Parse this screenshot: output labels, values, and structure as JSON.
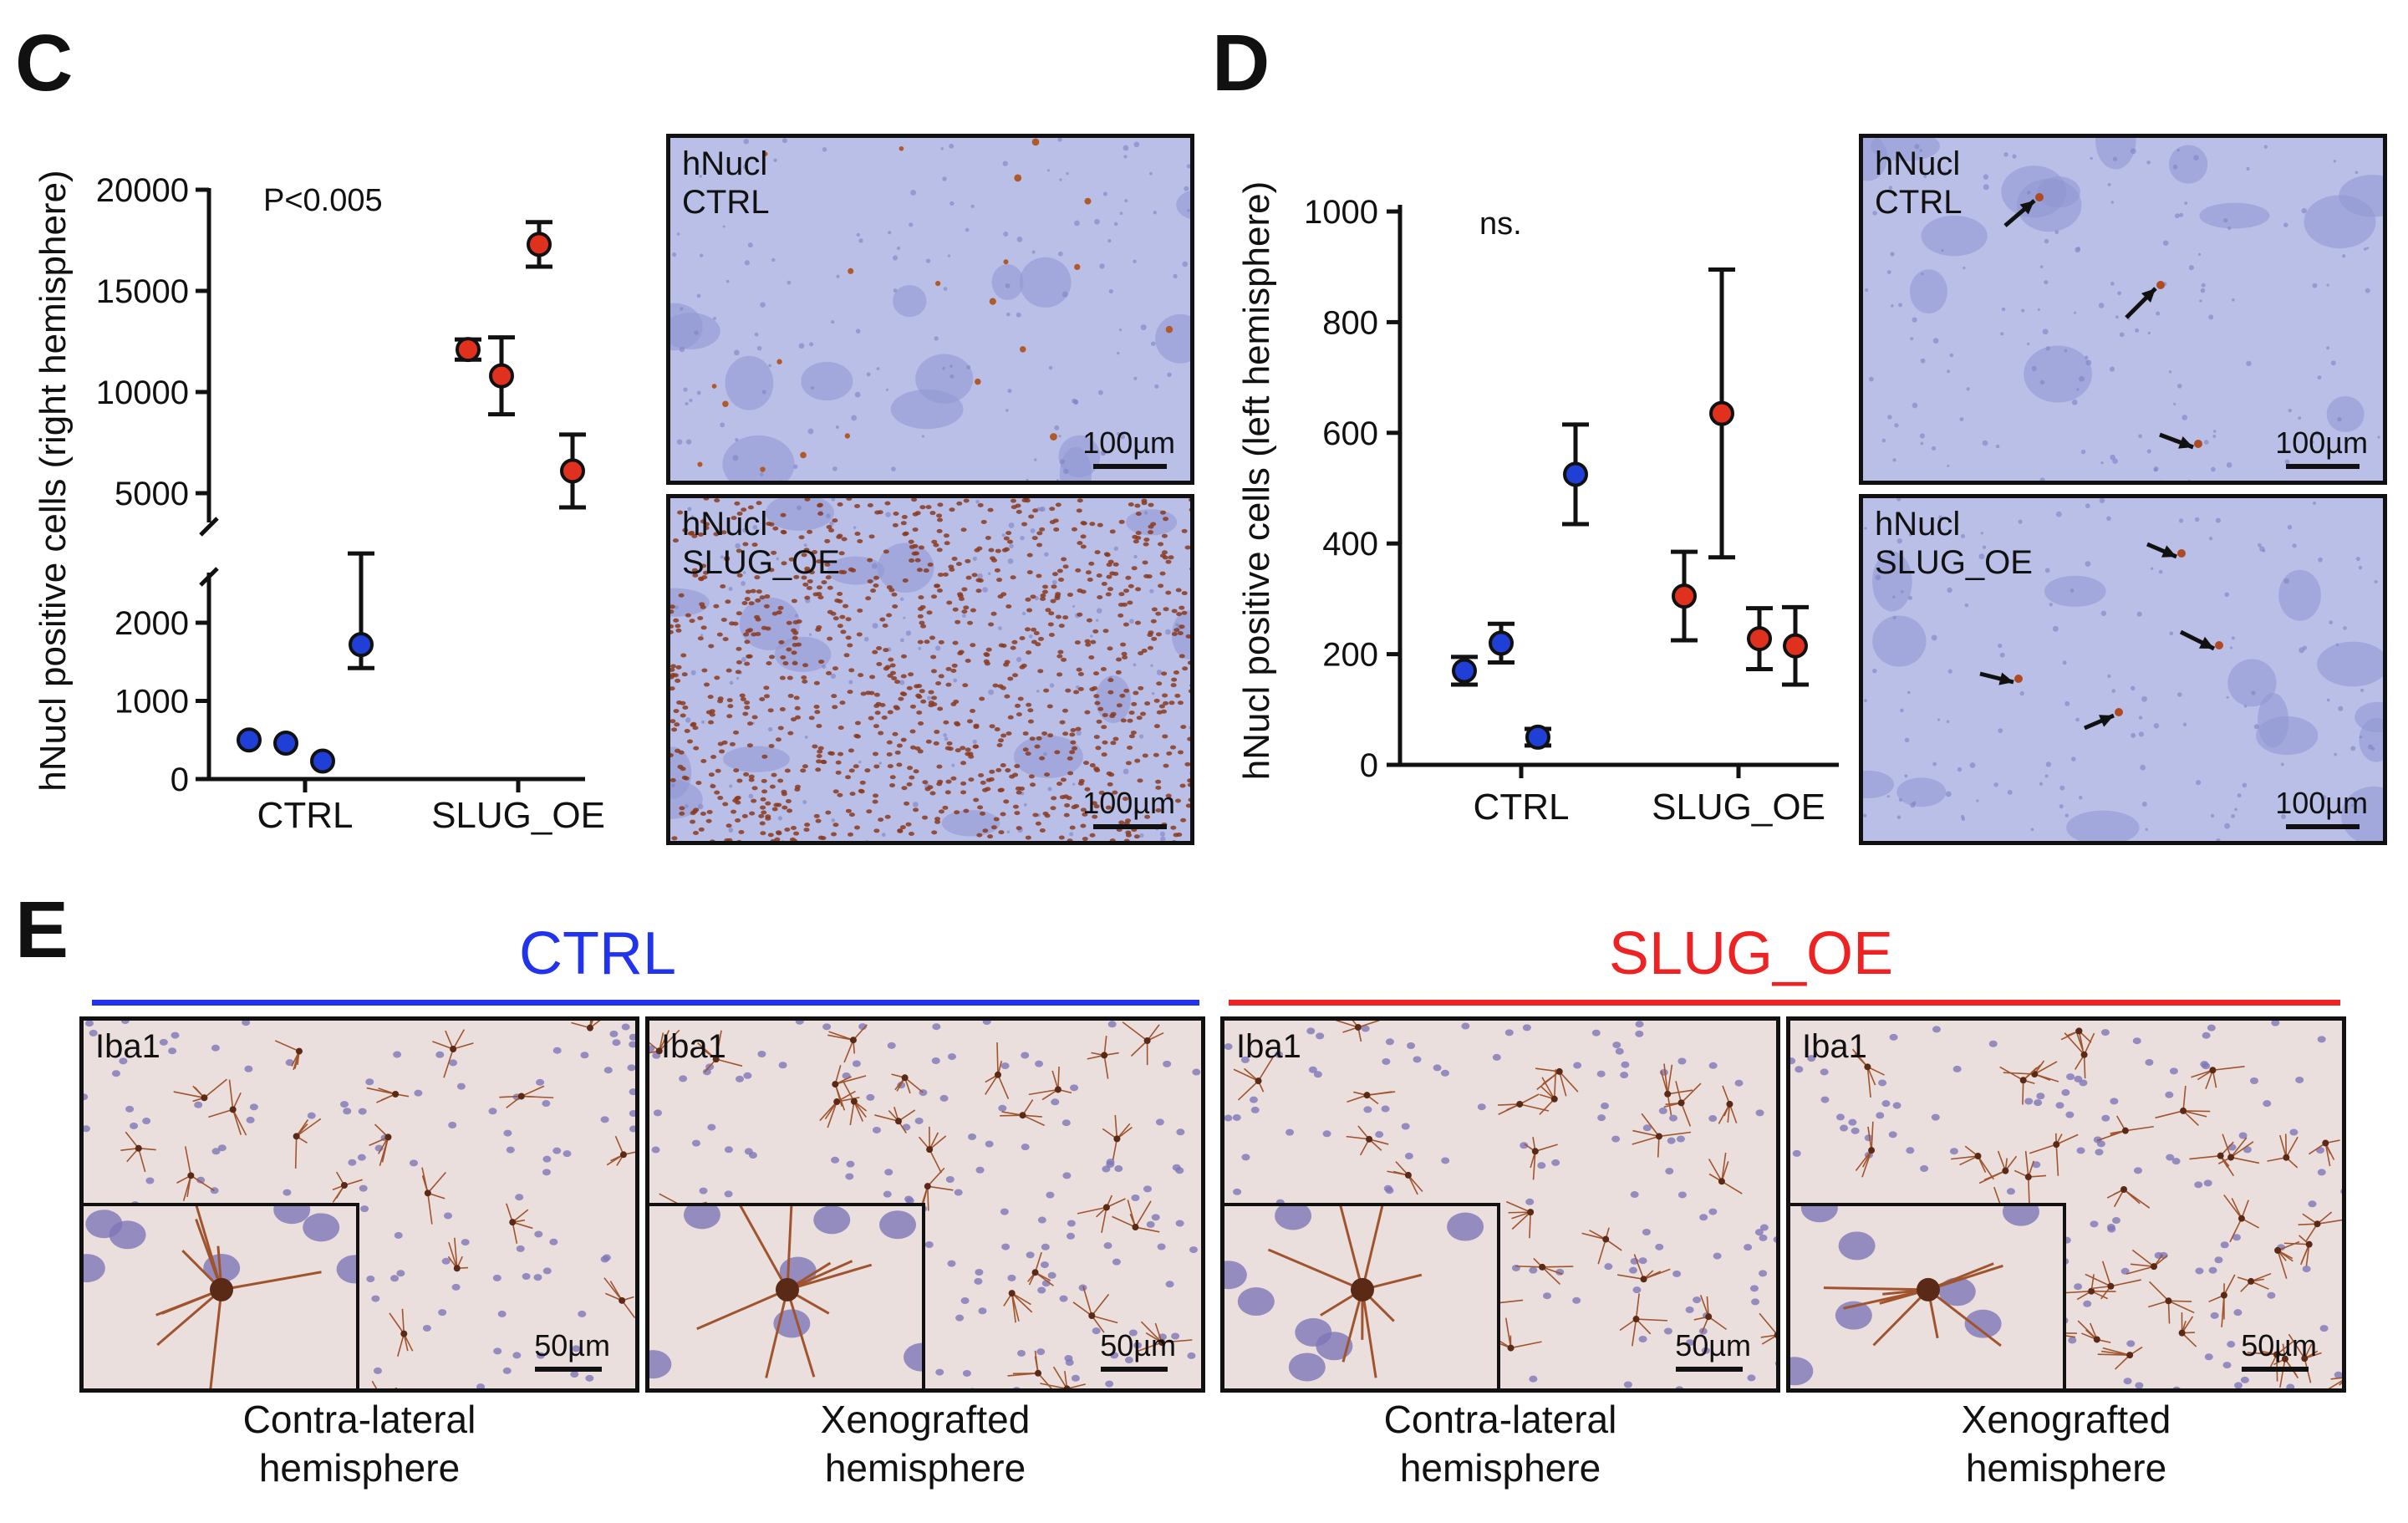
{
  "panels": {
    "C": {
      "letter": "C",
      "ylabel": "hNucl positive cells (right hemisphere)",
      "annotation": "P<0.005",
      "upper_ticks": [
        "20000",
        "15000",
        "10000",
        "5000"
      ],
      "lower_ticks": [
        "2000",
        "1000",
        "0"
      ],
      "xlabels": [
        "CTRL",
        "SLUG_OE"
      ],
      "images": [
        {
          "label": "hNucl\nCTRL",
          "scale": "100µm"
        },
        {
          "label": "hNucl\nSLUG_OE",
          "scale": "100µm"
        }
      ]
    },
    "D": {
      "letter": "D",
      "ylabel": "hNucl positive cells (left hemisphere)",
      "annotation": "ns.",
      "ticks": [
        "1000",
        "800",
        "600",
        "400",
        "200",
        "0"
      ],
      "xlabels": [
        "CTRL",
        "SLUG_OE"
      ],
      "images": [
        {
          "label": "hNucl\nCTRL",
          "scale": "100µm"
        },
        {
          "label": "hNucl\nSLUG_OE",
          "scale": "100µm"
        }
      ]
    },
    "E": {
      "letter": "E",
      "groups": [
        {
          "title": "CTRL",
          "color": "#2233ee"
        },
        {
          "title": "SLUG_OE",
          "color": "#ee2222"
        }
      ],
      "images": [
        {
          "label": "Iba1",
          "scale": "50µm",
          "caption_line1": "Contra-lateral",
          "caption_line2": "hemisphere"
        },
        {
          "label": "Iba1",
          "scale": "50µm",
          "caption_line1": "Xenografted",
          "caption_line2": "hemisphere"
        },
        {
          "label": "Iba1",
          "scale": "50µm",
          "caption_line1": "Contra-lateral",
          "caption_line2": "hemisphere"
        },
        {
          "label": "Iba1",
          "scale": "50µm",
          "caption_line1": "Xenografted",
          "caption_line2": "hemisphere"
        }
      ]
    }
  },
  "colors": {
    "ctrl": "#1f3fd6",
    "slug": "#e0301e",
    "tissue_blue": "#b9bfe6",
    "tissue_pink": "#e9dcdc"
  },
  "chart_data": [
    {
      "type": "scatter",
      "title": "",
      "ylabel": "hNucl positive cells (right hemisphere)",
      "xlabel": "",
      "categories": [
        "CTRL",
        "SLUG_OE"
      ],
      "broken_axis": {
        "lower_range": [
          0,
          2000
        ],
        "upper_range": [
          5000,
          20000
        ]
      },
      "series": [
        {
          "name": "CTRL",
          "color": "#1f3fd6",
          "points": [
            {
              "x": "CTRL",
              "y": 500,
              "err": 0
            },
            {
              "x": "CTRL",
              "y": 460,
              "err": 0
            },
            {
              "x": "CTRL",
              "y": 230,
              "err": 0
            },
            {
              "x": "CTRL",
              "y": 1720,
              "err": 300
            }
          ]
        },
        {
          "name": "SLUG_OE",
          "color": "#e0301e",
          "points": [
            {
              "x": "SLUG_OE",
              "y": 12100,
              "err": 500
            },
            {
              "x": "SLUG_OE",
              "y": 10800,
              "err": 1900
            },
            {
              "x": "SLUG_OE",
              "y": 17300,
              "err": 1100
            },
            {
              "x": "SLUG_OE",
              "y": 6100,
              "err": 1800
            }
          ]
        }
      ]
    },
    {
      "type": "scatter",
      "title": "",
      "ylabel": "hNucl positive cells (left hemisphere)",
      "xlabel": "",
      "categories": [
        "CTRL",
        "SLUG_OE"
      ],
      "ylim": [
        0,
        1000
      ],
      "series": [
        {
          "name": "CTRL",
          "color": "#1f3fd6",
          "points": [
            {
              "x": "CTRL",
              "y": 170,
              "err": 25
            },
            {
              "x": "CTRL",
              "y": 220,
              "err": 35
            },
            {
              "x": "CTRL",
              "y": 50,
              "err": 15
            },
            {
              "x": "CTRL",
              "y": 525,
              "err": 90
            }
          ]
        },
        {
          "name": "SLUG_OE",
          "color": "#e0301e",
          "points": [
            {
              "x": "SLUG_OE",
              "y": 305,
              "err": 80
            },
            {
              "x": "SLUG_OE",
              "y": 635,
              "err": 260
            },
            {
              "x": "SLUG_OE",
              "y": 228,
              "err": 55
            },
            {
              "x": "SLUG_OE",
              "y": 215,
              "err": 70
            }
          ]
        }
      ]
    }
  ]
}
